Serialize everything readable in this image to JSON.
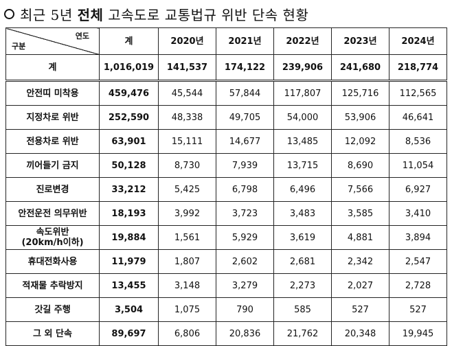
{
  "title": {
    "before": "최근 5년 ",
    "emphasis": "전체",
    "after": " 고속도로 교통법규 위반 단속 현황"
  },
  "table": {
    "corner_top": "연도",
    "corner_bottom": "구분",
    "columns": [
      "계",
      "2020년",
      "2021년",
      "2022년",
      "2023년",
      "2024년"
    ],
    "total": {
      "label": "계",
      "values": [
        "1,016,019",
        "141,537",
        "174,122",
        "239,906",
        "241,680",
        "218,774"
      ]
    },
    "rows": [
      {
        "label": "안전띠 미착용",
        "values": [
          "459,476",
          "45,544",
          "57,844",
          "117,807",
          "125,716",
          "112,565"
        ]
      },
      {
        "label": "지정차로 위반",
        "values": [
          "252,590",
          "48,338",
          "49,705",
          "54,000",
          "53,906",
          "46,641"
        ]
      },
      {
        "label": "전용차로 위반",
        "values": [
          "63,901",
          "15,111",
          "14,677",
          "13,485",
          "12,092",
          "8,536"
        ]
      },
      {
        "label": "끼어들기 금지",
        "values": [
          "50,128",
          "8,730",
          "7,939",
          "13,715",
          "8,690",
          "11,054"
        ]
      },
      {
        "label": "진로변경",
        "values": [
          "33,212",
          "5,425",
          "6,798",
          "6,496",
          "7,566",
          "6,927"
        ]
      },
      {
        "label": "안전운전 의무위반",
        "values": [
          "18,193",
          "3,992",
          "3,723",
          "3,483",
          "3,585",
          "3,410"
        ]
      },
      {
        "label": "속도위반",
        "label2": "(20km/h이하)",
        "values": [
          "19,884",
          "1,561",
          "5,929",
          "3,619",
          "4,881",
          "3,894"
        ]
      },
      {
        "label": "휴대전화사용",
        "values": [
          "11,979",
          "1,807",
          "2,602",
          "2,681",
          "2,342",
          "2,547"
        ]
      },
      {
        "label": "적재물 추락방지",
        "values": [
          "13,455",
          "3,148",
          "3,279",
          "2,273",
          "2,027",
          "2,728"
        ]
      },
      {
        "label": "갓길 주행",
        "values": [
          "3,504",
          "1,075",
          "790",
          "585",
          "527",
          "527"
        ]
      },
      {
        "label": "그 외 단속",
        "values": [
          "89,697",
          "6,806",
          "20,836",
          "21,762",
          "20,348",
          "19,945"
        ]
      }
    ]
  }
}
